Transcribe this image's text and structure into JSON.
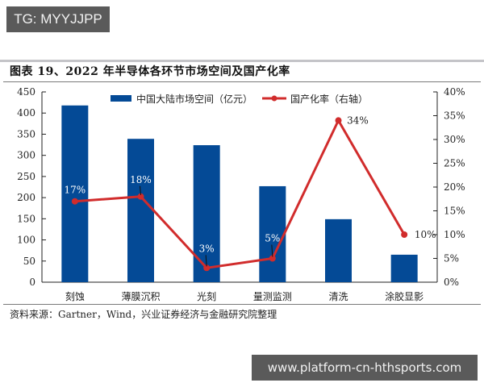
{
  "watermarks": {
    "top": "TG: MYYJJPP",
    "bottom": "www.platform-cn-hthsports.com"
  },
  "figure": {
    "title": "图表 19、2022 年半导体各环节市场空间及国产化率",
    "source": "资料来源：Gartner，Wind，兴业证券经济与金融研究院整理"
  },
  "colors": {
    "bar": "#044a96",
    "line": "#d12c2c"
  },
  "chart_data": {
    "type": "bar+line",
    "title": "图表 19、2022 年半导体各环节市场空间及国产化率",
    "categories": [
      "刻蚀",
      "薄膜沉积",
      "光刻",
      "量测监测",
      "清洗",
      "涂胶显影"
    ],
    "series": [
      {
        "name": "中国大陆市场空间（亿元）",
        "type": "bar",
        "axis": "left",
        "values": [
          418,
          339,
          324,
          227,
          149,
          65
        ]
      },
      {
        "name": "国产化率（右轴）",
        "type": "line",
        "axis": "right",
        "values": [
          17,
          18,
          3,
          5,
          34,
          10
        ],
        "labels": [
          "17%",
          "18%",
          "3%",
          "5%",
          "34%",
          "10%"
        ]
      }
    ],
    "left_axis": {
      "ylim": [
        0,
        450
      ],
      "ticks": [
        "0",
        "50",
        "100",
        "150",
        "200",
        "250",
        "300",
        "350",
        "400",
        "450"
      ]
    },
    "right_axis": {
      "ylim": [
        0,
        40
      ],
      "ticks": [
        "0%",
        "5%",
        "10%",
        "15%",
        "20%",
        "25%",
        "30%",
        "35%",
        "40%"
      ]
    },
    "legend": {
      "position": "top-center",
      "entries": [
        "中国大陆市场空间（亿元）",
        "国产化率（右轴）"
      ]
    },
    "grid": false
  }
}
